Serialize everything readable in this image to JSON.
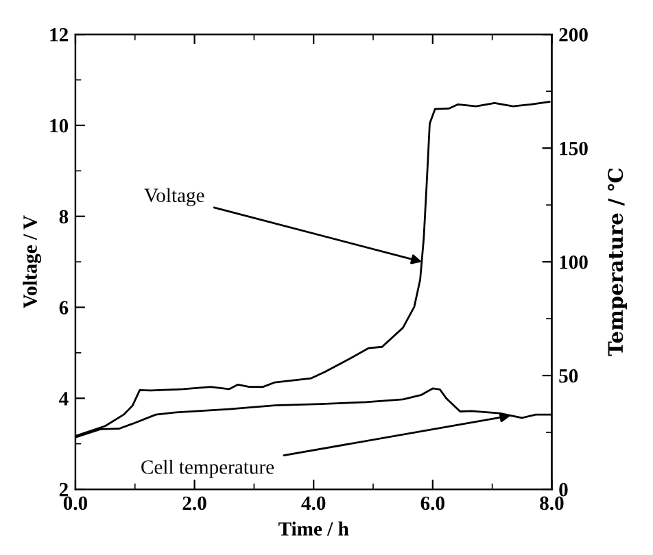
{
  "chart_data": {
    "type": "line",
    "xlabel": "Time / h",
    "ylabel": "Voltage / V",
    "y2label": "Temperature / ℃",
    "series": [
      {
        "color": "#000000",
        "x": [
          0,
          0.5,
          0.81,
          0.96,
          1.08,
          1.27,
          1.81,
          2.27,
          2.58,
          2.73,
          2.92,
          3.15,
          3.35,
          3.96,
          4.19,
          4.58,
          4.92,
          5.15,
          5.5,
          5.69,
          5.79,
          5.85,
          5.9,
          5.95,
          6.04,
          6.27,
          6.42,
          6.73,
          7.04,
          7.35,
          7.65,
          7.96
        ],
        "values": [
          3.17,
          3.39,
          3.64,
          3.84,
          4.18,
          4.17,
          4.2,
          4.25,
          4.2,
          4.3,
          4.25,
          4.25,
          4.35,
          4.44,
          4.58,
          4.85,
          5.1,
          5.13,
          5.55,
          6.01,
          6.61,
          7.52,
          8.73,
          10.04,
          10.36,
          10.37,
          10.46,
          10.42,
          10.49,
          10.42,
          10.46,
          10.52
        ]
      },
      {
        "color": "#000000",
        "axis": "y2",
        "x": [
          0,
          0.42,
          0.73,
          0.96,
          1.35,
          1.69,
          2.58,
          3.35,
          4.12,
          4.88,
          5.5,
          5.81,
          6.0,
          6.12,
          6.23,
          6.46,
          6.65,
          7.12,
          7.5,
          7.73,
          8.0
        ],
        "values": [
          22.8,
          26.4,
          26.6,
          28.8,
          32.8,
          33.8,
          35.2,
          36.9,
          37.5,
          38.3,
          39.5,
          41.5,
          44.3,
          43.9,
          39.9,
          34.2,
          34.4,
          33.4,
          31.4,
          32.8,
          32.8
        ]
      }
    ],
    "xlim": [
      0,
      8
    ],
    "xticks": [
      {
        "value": 0,
        "label": "0.0"
      },
      {
        "value": 2,
        "label": "2.0"
      },
      {
        "value": 4,
        "label": "4.0"
      },
      {
        "value": 6,
        "label": "6.0"
      },
      {
        "value": 8,
        "label": "8.0"
      }
    ],
    "ylim": [
      2,
      12
    ],
    "yticks": [
      2,
      4,
      6,
      8,
      10,
      12
    ],
    "y2lim": [
      0,
      200
    ],
    "y2ticks": [
      0,
      50,
      100,
      150,
      200
    ],
    "annotations": [
      {
        "text": "Voltage",
        "x": 5.82,
        "y": 7.0
      },
      {
        "text": "Cell temperature",
        "x": 7.31,
        "y": 3.62
      }
    ],
    "grid": false,
    "marker": "none",
    "line_style": "solid"
  }
}
